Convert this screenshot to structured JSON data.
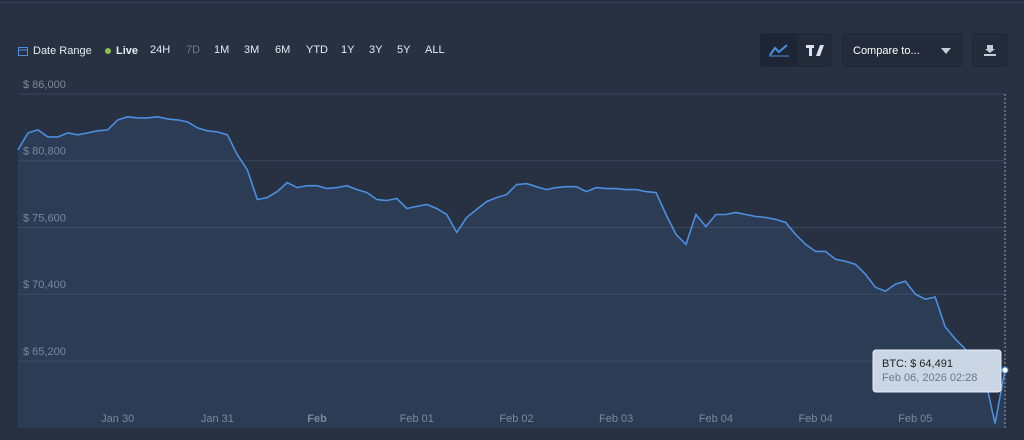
{
  "toolbar": {
    "date_range": "Date Range",
    "live": "Live",
    "ranges": [
      "24H",
      "7D",
      "1M",
      "3M",
      "6M",
      "YTD",
      "1Y",
      "3Y",
      "5Y",
      "ALL"
    ],
    "inactive_range": "7D",
    "compare": "Compare to..."
  },
  "chart_data": {
    "type": "line",
    "categories": [
      null,
      null,
      null,
      null,
      null,
      null,
      null,
      null,
      null,
      null,
      "Jan 30",
      null,
      null,
      null,
      null,
      null,
      null,
      null,
      null,
      null,
      "Jan 31",
      null,
      null,
      null,
      null,
      null,
      null,
      null,
      null,
      null,
      "Feb",
      null,
      null,
      null,
      null,
      null,
      null,
      null,
      null,
      null,
      "Feb 01",
      null,
      null,
      null,
      null,
      null,
      null,
      null,
      null,
      null,
      "Feb 02",
      null,
      null,
      null,
      null,
      null,
      null,
      null,
      null,
      null,
      "Feb 03",
      null,
      null,
      null,
      null,
      null,
      null,
      null,
      null,
      null,
      "Feb 04",
      null,
      null,
      null,
      null,
      null,
      null,
      null,
      null,
      null,
      "Feb 04",
      null,
      null,
      null,
      null,
      null,
      null,
      null,
      null,
      null,
      "Feb 05",
      null,
      null,
      null,
      null,
      null,
      null,
      null,
      null,
      null
    ],
    "series": [
      {
        "color": "#4a8fe0",
        "values": [
          81650,
          82970,
          83200,
          82660,
          82660,
          82970,
          82820,
          82970,
          83130,
          83200,
          83980,
          84220,
          84140,
          84140,
          84220,
          84060,
          83980,
          83830,
          83360,
          83130,
          83050,
          82820,
          81270,
          80100,
          77780,
          77930,
          78400,
          79100,
          78710,
          78860,
          78860,
          78630,
          78710,
          78860,
          78550,
          78320,
          77780,
          77700,
          77860,
          77080,
          77240,
          77390,
          77080,
          76610,
          75220,
          76380,
          77000,
          77620,
          77930,
          78160,
          78940,
          79020,
          78780,
          78550,
          78710,
          78780,
          78780,
          78400,
          78710,
          78630,
          78630,
          78550,
          78550,
          78400,
          78320,
          76610,
          75060,
          74280,
          76610,
          75680,
          76610,
          76610,
          76770,
          76610,
          76460,
          76380,
          76230,
          75990,
          75060,
          74280,
          73740,
          73740,
          73120,
          72970,
          72730,
          71960,
          70950,
          70640,
          71180,
          71420,
          70410,
          70020,
          70180,
          67860,
          66920,
          66150,
          64600,
          63820,
          60320,
          64491
        ]
      }
    ],
    "ylim": [
      60000,
      86000
    ],
    "yticks": [
      {
        "value": 86000,
        "label": "$ 86,000"
      },
      {
        "value": 80800,
        "label": "$ 80,800"
      },
      {
        "value": 75600,
        "label": "$ 75,600"
      },
      {
        "value": 70400,
        "label": "$ 70,400"
      },
      {
        "value": 65200,
        "label": "$ 65,200"
      }
    ],
    "grid": true,
    "tooltip": {
      "text": "BTC: $ 64,491",
      "time": "Feb 06, 2026 02:28"
    }
  }
}
